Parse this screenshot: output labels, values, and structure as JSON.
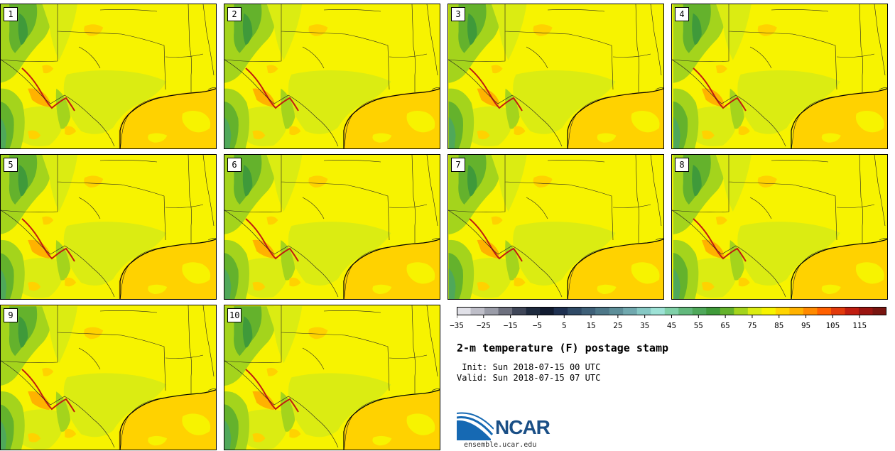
{
  "title": "2-m temperature (F) postage stamp",
  "init_label": " Init: Sun 2018-07-15 00 UTC",
  "valid_label": "Valid: Sun 2018-07-15 07 UTC",
  "logo_text": "NCAR",
  "url": "ensemble.ucar.edu",
  "members": [
    "1",
    "2",
    "3",
    "4",
    "5",
    "6",
    "7",
    "8",
    "9",
    "10"
  ],
  "colorbar": {
    "min": -35,
    "max": 120,
    "step": 5,
    "tick_labels": [
      "−35",
      "−25",
      "−15",
      "−5",
      "5",
      "15",
      "25",
      "35",
      "45",
      "55",
      "65",
      "75",
      "85",
      "95",
      "105",
      "115"
    ],
    "tick_values": [
      -35,
      -25,
      -15,
      -5,
      5,
      15,
      25,
      35,
      45,
      55,
      65,
      75,
      85,
      95,
      105,
      115
    ],
    "colors": [
      "#e1e1e8",
      "#bebec8",
      "#9a9ca8",
      "#6d707e",
      "#3f4658",
      "#1e2a3e",
      "#111b30",
      "#1e3050",
      "#2f4a66",
      "#3e6078",
      "#4d7788",
      "#5d8e98",
      "#70a8ae",
      "#86c8c4",
      "#9de2d6",
      "#7fd0a8",
      "#62b87c",
      "#4fa85a",
      "#3f9a3a",
      "#64b22c",
      "#a4d41c",
      "#dbec12",
      "#f7f300",
      "#ffd400",
      "#ffb200",
      "#ff8a00",
      "#ff6000",
      "#e23a0c",
      "#c01d10",
      "#9a1410",
      "#781510"
    ]
  }
}
